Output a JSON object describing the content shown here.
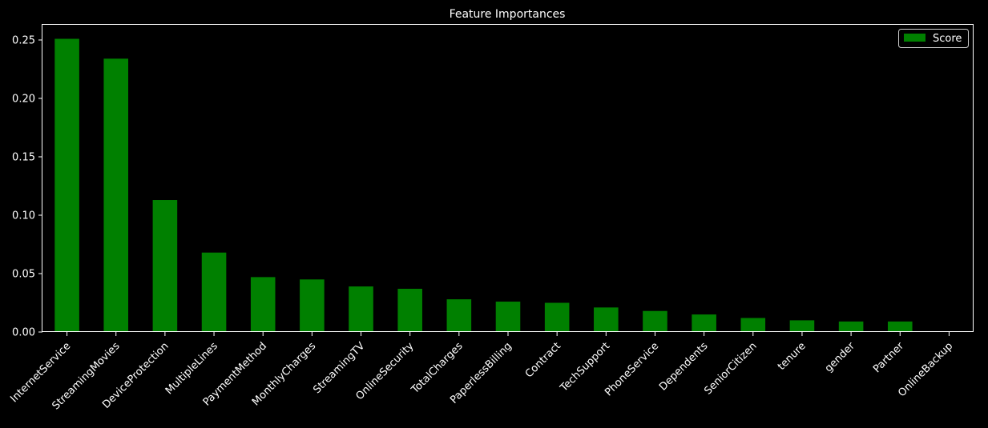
{
  "chart_data": {
    "type": "bar",
    "title": "Feature Importances",
    "xlabel": "",
    "ylabel": "",
    "categories": [
      "InternetService",
      "StreamingMovies",
      "DeviceProtection",
      "MultipleLines",
      "PaymentMethod",
      "MonthlyCharges",
      "StreamingTV",
      "OnlineSecurity",
      "TotalCharges",
      "PaperlessBilling",
      "Contract",
      "TechSupport",
      "PhoneService",
      "Dependents",
      "SeniorCitizen",
      "tenure",
      "gender",
      "Partner",
      "OnlineBackup"
    ],
    "series": [
      {
        "name": "Score",
        "values": [
          0.251,
          0.234,
          0.113,
          0.068,
          0.047,
          0.045,
          0.039,
          0.037,
          0.028,
          0.026,
          0.025,
          0.021,
          0.018,
          0.015,
          0.012,
          0.01,
          0.009,
          0.009,
          0.0
        ]
      }
    ],
    "ylim": [
      0,
      0.263
    ],
    "yticks": [
      "0.00",
      "0.05",
      "0.10",
      "0.15",
      "0.20",
      "0.25"
    ],
    "legend": "top-right",
    "grid": false,
    "colors": {
      "bar": "#008000",
      "background": "#000000",
      "axis": "#ffffff"
    }
  }
}
